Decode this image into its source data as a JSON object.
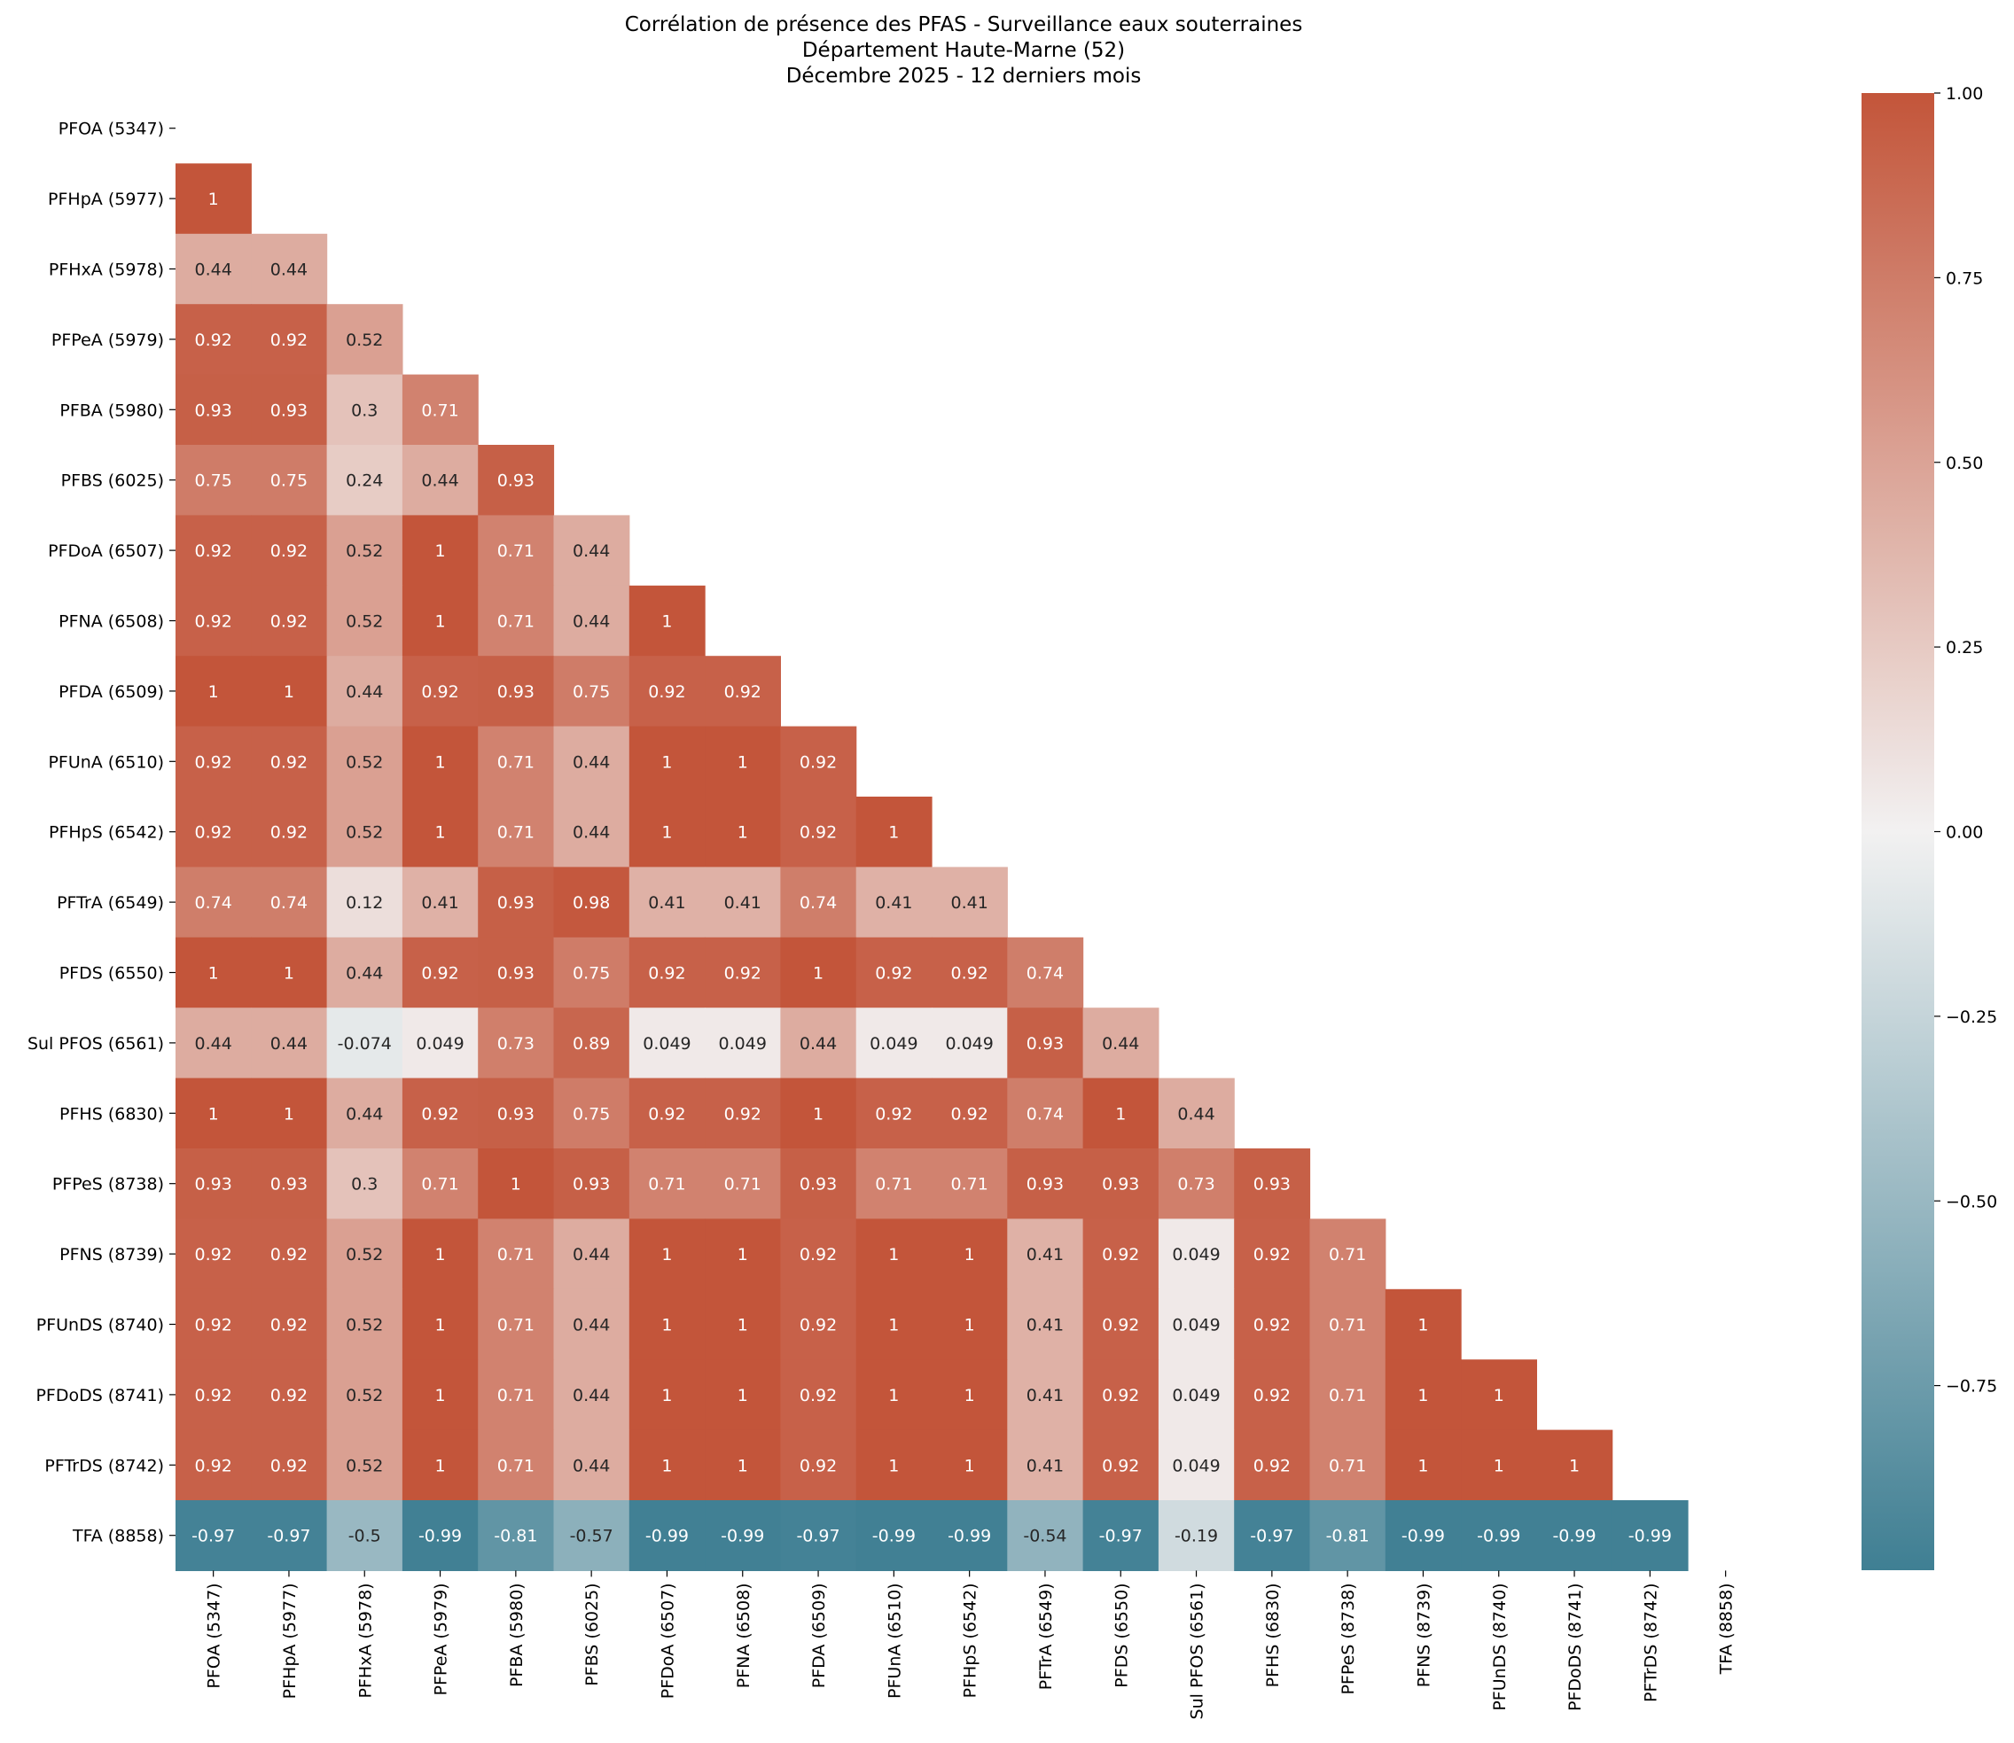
{
  "chart_data": {
    "type": "heatmap",
    "title": [
      "Corrélation de présence des PFAS - Surveillance eaux souterraines",
      "Département Haute-Marne (52)",
      "Décembre 2025 - 12 derniers mois"
    ],
    "labels": [
      "PFOA (5347)",
      "PFHpA (5977)",
      "PFHxA (5978)",
      "PFPeA (5979)",
      "PFBA (5980)",
      "PFBS (6025)",
      "PFDoA (6507)",
      "PFNA (6508)",
      "PFDA (6509)",
      "PFUnA (6510)",
      "PFHpS (6542)",
      "PFTrA (6549)",
      "PFDS (6550)",
      "Sul PFOS (6561)",
      "PFHS (6830)",
      "PFPeS (8738)",
      "PFNS (8739)",
      "PFUnDS (8740)",
      "PFDoDS (8741)",
      "PFTrDS (8742)",
      "TFA (8858)"
    ],
    "rows": [
      [],
      [
        "1"
      ],
      [
        "0.44",
        "0.44"
      ],
      [
        "0.92",
        "0.92",
        "0.52"
      ],
      [
        "0.93",
        "0.93",
        "0.3",
        "0.71"
      ],
      [
        "0.75",
        "0.75",
        "0.24",
        "0.44",
        "0.93"
      ],
      [
        "0.92",
        "0.92",
        "0.52",
        "1",
        "0.71",
        "0.44"
      ],
      [
        "0.92",
        "0.92",
        "0.52",
        "1",
        "0.71",
        "0.44",
        "1"
      ],
      [
        "1",
        "1",
        "0.44",
        "0.92",
        "0.93",
        "0.75",
        "0.92",
        "0.92"
      ],
      [
        "0.92",
        "0.92",
        "0.52",
        "1",
        "0.71",
        "0.44",
        "1",
        "1",
        "0.92"
      ],
      [
        "0.92",
        "0.92",
        "0.52",
        "1",
        "0.71",
        "0.44",
        "1",
        "1",
        "0.92",
        "1"
      ],
      [
        "0.74",
        "0.74",
        "0.12",
        "0.41",
        "0.93",
        "0.98",
        "0.41",
        "0.41",
        "0.74",
        "0.41",
        "0.41"
      ],
      [
        "1",
        "1",
        "0.44",
        "0.92",
        "0.93",
        "0.75",
        "0.92",
        "0.92",
        "1",
        "0.92",
        "0.92",
        "0.74"
      ],
      [
        "0.44",
        "0.44",
        "-0.074",
        "0.049",
        "0.73",
        "0.89",
        "0.049",
        "0.049",
        "0.44",
        "0.049",
        "0.049",
        "0.93",
        "0.44"
      ],
      [
        "1",
        "1",
        "0.44",
        "0.92",
        "0.93",
        "0.75",
        "0.92",
        "0.92",
        "1",
        "0.92",
        "0.92",
        "0.74",
        "1",
        "0.44"
      ],
      [
        "0.93",
        "0.93",
        "0.3",
        "0.71",
        "1",
        "0.93",
        "0.71",
        "0.71",
        "0.93",
        "0.71",
        "0.71",
        "0.93",
        "0.93",
        "0.73",
        "0.93"
      ],
      [
        "0.92",
        "0.92",
        "0.52",
        "1",
        "0.71",
        "0.44",
        "1",
        "1",
        "0.92",
        "1",
        "1",
        "0.41",
        "0.92",
        "0.049",
        "0.92",
        "0.71"
      ],
      [
        "0.92",
        "0.92",
        "0.52",
        "1",
        "0.71",
        "0.44",
        "1",
        "1",
        "0.92",
        "1",
        "1",
        "0.41",
        "0.92",
        "0.049",
        "0.92",
        "0.71",
        "1"
      ],
      [
        "0.92",
        "0.92",
        "0.52",
        "1",
        "0.71",
        "0.44",
        "1",
        "1",
        "0.92",
        "1",
        "1",
        "0.41",
        "0.92",
        "0.049",
        "0.92",
        "0.71",
        "1",
        "1"
      ],
      [
        "0.92",
        "0.92",
        "0.52",
        "1",
        "0.71",
        "0.44",
        "1",
        "1",
        "0.92",
        "1",
        "1",
        "0.41",
        "0.92",
        "0.049",
        "0.92",
        "0.71",
        "1",
        "1",
        "1"
      ],
      [
        "-0.97",
        "-0.97",
        "-0.5",
        "-0.99",
        "-0.81",
        "-0.57",
        "-0.99",
        "-0.99",
        "-0.97",
        "-0.99",
        "-0.99",
        "-0.54",
        "-0.97",
        "-0.19",
        "-0.97",
        "-0.81",
        "-0.99",
        "-0.99",
        "-0.99",
        "-0.99"
      ]
    ],
    "colorbar": {
      "range": [
        -1.0,
        1.0
      ],
      "ticks": [
        "1.00",
        "0.75",
        "0.50",
        "0.25",
        "0.00",
        "−0.25",
        "−0.50",
        "−0.75"
      ],
      "tick_values": [
        1.0,
        0.75,
        0.5,
        0.25,
        0.0,
        -0.25,
        -0.5,
        -0.75
      ],
      "colors": {
        "negative": "#3f7f93",
        "neutral": "#f2f1f1",
        "positive": "#c3553a"
      }
    },
    "mask": "upper-triangle-and-diagonal"
  }
}
